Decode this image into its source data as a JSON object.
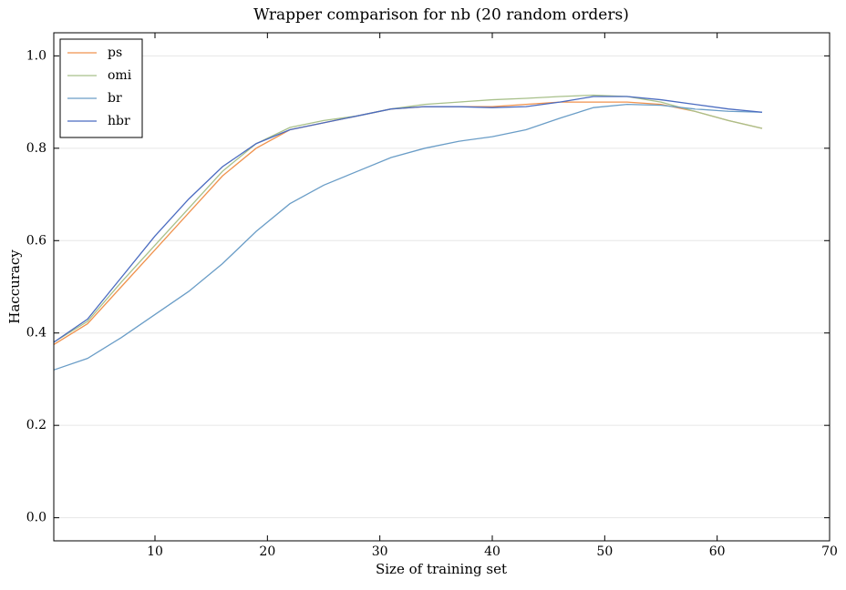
{
  "chart_data": {
    "type": "line",
    "title": "Wrapper comparison for nb (20 random orders)",
    "x_label": "Size of training set",
    "y_label": "Haccuracy",
    "x": [
      1,
      4,
      7,
      10,
      13,
      16,
      19,
      22,
      25,
      28,
      31,
      34,
      37,
      40,
      43,
      46,
      49,
      52,
      55,
      58,
      61,
      64
    ],
    "series": [
      {
        "name": "ps",
        "color": "#f0924d",
        "values": [
          0.375,
          0.42,
          0.5,
          0.58,
          0.66,
          0.74,
          0.8,
          0.84,
          0.855,
          0.87,
          0.885,
          0.89,
          0.89,
          0.89,
          0.895,
          0.9,
          0.9,
          0.9,
          0.895,
          0.88,
          0.86,
          0.843
        ]
      },
      {
        "name": "omi",
        "color": "#a8c08a",
        "values": [
          0.38,
          0.425,
          0.51,
          0.59,
          0.67,
          0.75,
          0.81,
          0.845,
          0.86,
          0.87,
          0.885,
          0.895,
          0.9,
          0.905,
          0.908,
          0.912,
          0.915,
          0.912,
          0.9,
          0.88,
          0.86,
          0.843
        ]
      },
      {
        "name": "br",
        "color": "#6a9dc7",
        "values": [
          0.32,
          0.345,
          0.39,
          0.44,
          0.49,
          0.55,
          0.62,
          0.68,
          0.72,
          0.75,
          0.78,
          0.8,
          0.815,
          0.825,
          0.84,
          0.865,
          0.888,
          0.895,
          0.893,
          0.885,
          0.88,
          0.878
        ]
      },
      {
        "name": "hbr",
        "color": "#4a6bc0",
        "values": [
          0.38,
          0.43,
          0.52,
          0.61,
          0.69,
          0.76,
          0.81,
          0.84,
          0.855,
          0.87,
          0.885,
          0.89,
          0.89,
          0.888,
          0.89,
          0.9,
          0.912,
          0.912,
          0.905,
          0.895,
          0.885,
          0.878
        ]
      }
    ],
    "xlim": [
      1,
      70
    ],
    "xticks": [
      10,
      20,
      30,
      40,
      50,
      60,
      70
    ],
    "ylim": [
      -0.05,
      1.05
    ],
    "yticks": [
      {
        "value": 0,
        "label": "0.0"
      },
      0.2,
      0.4,
      0.6,
      0.8,
      {
        "value": 1,
        "label": "1.0"
      }
    ],
    "grid": true,
    "legend": "upper left"
  }
}
